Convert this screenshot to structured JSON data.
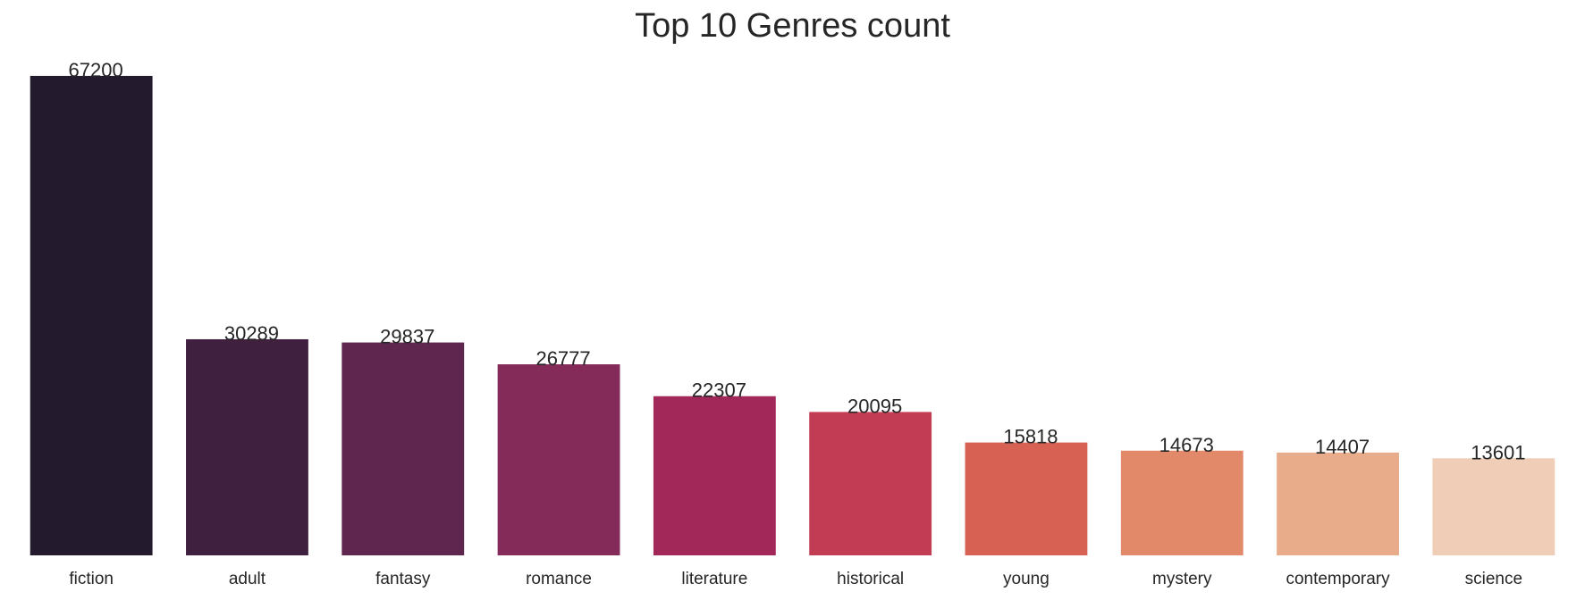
{
  "chart_data": {
    "type": "bar",
    "title": "Top 10 Genres count",
    "xlabel": "",
    "ylabel": "",
    "categories": [
      "fiction",
      "adult",
      "fantasy",
      "romance",
      "literature",
      "historical",
      "young",
      "mystery",
      "contemporary",
      "science"
    ],
    "values": [
      67200,
      30289,
      29837,
      26777,
      22307,
      20095,
      15818,
      14673,
      14407,
      13601
    ],
    "labels": [
      "67200",
      "30289",
      "29837",
      "26777",
      "22307",
      "20095",
      "15818",
      "14673",
      "14407",
      "13601"
    ],
    "colors": [
      "#231a2e",
      "#40203f",
      "#5f2750",
      "#842b5a",
      "#a2285a",
      "#c23c53",
      "#d76253",
      "#e2896a",
      "#e8ac8b",
      "#efcdb6"
    ],
    "ylim": [
      0,
      67200
    ],
    "grid": false,
    "legend": "none"
  }
}
